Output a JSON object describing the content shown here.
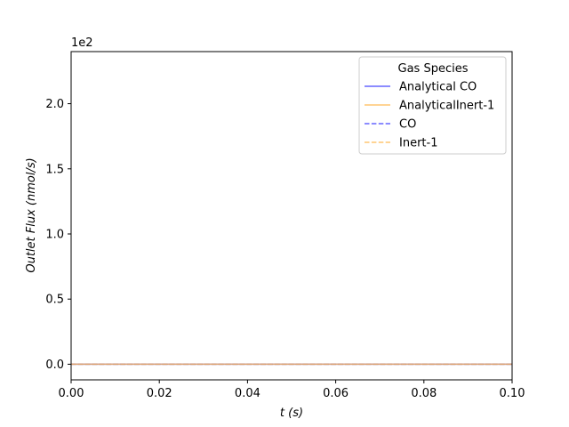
{
  "chart_data": {
    "type": "line",
    "xlabel": "t (s)",
    "ylabel": "Outlet Flux (nmol/s)",
    "y_offset_label": "1e2",
    "xlim": [
      0.0,
      0.1
    ],
    "ylim": [
      -0.12,
      2.4
    ],
    "x_ticks": [
      0.0,
      0.02,
      0.04,
      0.06,
      0.08,
      0.1
    ],
    "x_tick_labels": [
      "0.00",
      "0.02",
      "0.04",
      "0.06",
      "0.08",
      "0.10"
    ],
    "y_ticks": [
      0.0,
      0.5,
      1.0,
      1.5,
      2.0
    ],
    "y_tick_labels": [
      "0.0",
      "0.5",
      "1.0",
      "1.5",
      "2.0"
    ],
    "grid": false,
    "legend": {
      "title": "Gas Species",
      "placement": "top-right"
    },
    "series": [
      {
        "name": "Analytical CO",
        "color": "#4040ff",
        "style": "solid",
        "x": [
          0.0,
          0.1
        ],
        "y": [
          0.0,
          0.0
        ]
      },
      {
        "name": "AnalyticalInert-1",
        "color": "#ffb74d",
        "style": "solid",
        "x": [
          0.0,
          0.1
        ],
        "y": [
          0.0,
          0.0
        ]
      },
      {
        "name": "CO",
        "color": "#4040ff",
        "style": "dashed",
        "x": [
          0.0,
          0.1
        ],
        "y": [
          0.0,
          0.0
        ]
      },
      {
        "name": "Inert-1",
        "color": "#ffb74d",
        "style": "dashed",
        "x": [
          0.0,
          0.1
        ],
        "y": [
          0.0,
          0.0
        ]
      }
    ]
  }
}
